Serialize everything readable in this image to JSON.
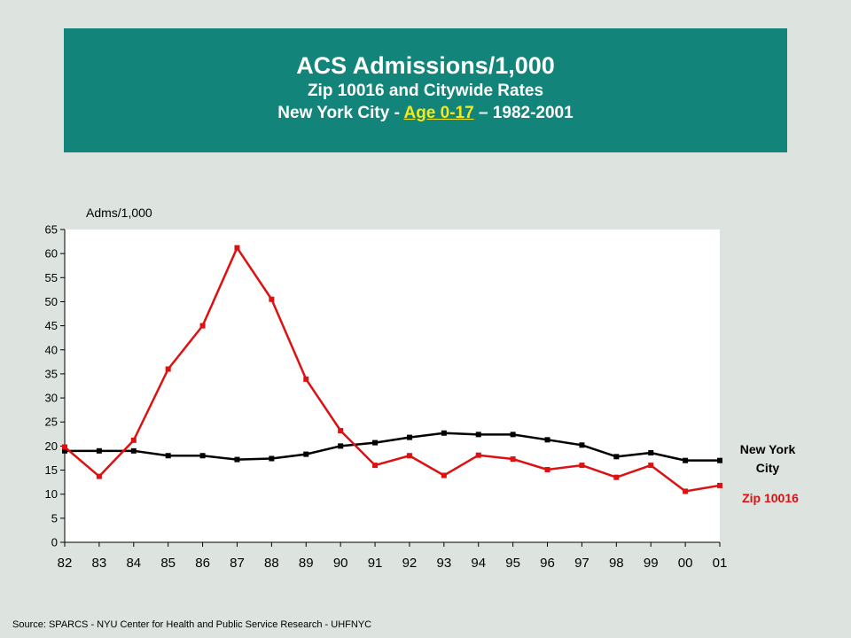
{
  "title": {
    "line1": "ACS Admissions/1,000",
    "line2": "Zip 10016 and Citywide Rates",
    "line3_prefix": "New York City - ",
    "line3_highlight": "Age 0-17",
    "line3_suffix": " – 1982-2001"
  },
  "source": "Source:  SPARCS - NYU Center  for Health and Public Service Research  - UHFNYC",
  "colors": {
    "title_bg": "#128479",
    "highlight": "#f2ea1c",
    "nyc": "#000000",
    "zip": "#dd1111",
    "plot_bg": "#ffffff",
    "page_bg": "#dde3df"
  },
  "chart_data": {
    "type": "line",
    "ylabel": "Adms/1,000",
    "xlabel": "",
    "categories": [
      "82",
      "83",
      "84",
      "85",
      "86",
      "87",
      "88",
      "89",
      "90",
      "91",
      "92",
      "93",
      "94",
      "95",
      "96",
      "97",
      "98",
      "99",
      "00",
      "01"
    ],
    "ylim": [
      0,
      65
    ],
    "yticks": [
      0,
      5,
      10,
      15,
      20,
      25,
      30,
      35,
      40,
      45,
      50,
      55,
      60,
      65
    ],
    "grid": false,
    "series": [
      {
        "name": "New York City",
        "label_lines": [
          "New York",
          "City"
        ],
        "color": "#000000",
        "values": [
          19,
          19,
          19,
          18,
          18,
          17.2,
          17.4,
          18.3,
          20,
          20.7,
          21.8,
          22.7,
          22.4,
          22.4,
          21.3,
          20.2,
          17.8,
          18.6,
          17,
          17
        ]
      },
      {
        "name": "Zip 10016",
        "label_lines": [
          "Zip 10016"
        ],
        "color": "#dd1111",
        "values": [
          19.8,
          13.7,
          21.2,
          36,
          45,
          61.2,
          50.5,
          33.9,
          23.2,
          16,
          18,
          13.9,
          18.1,
          17.3,
          15.1,
          16,
          13.5,
          16,
          10.6,
          11.8
        ]
      }
    ]
  }
}
